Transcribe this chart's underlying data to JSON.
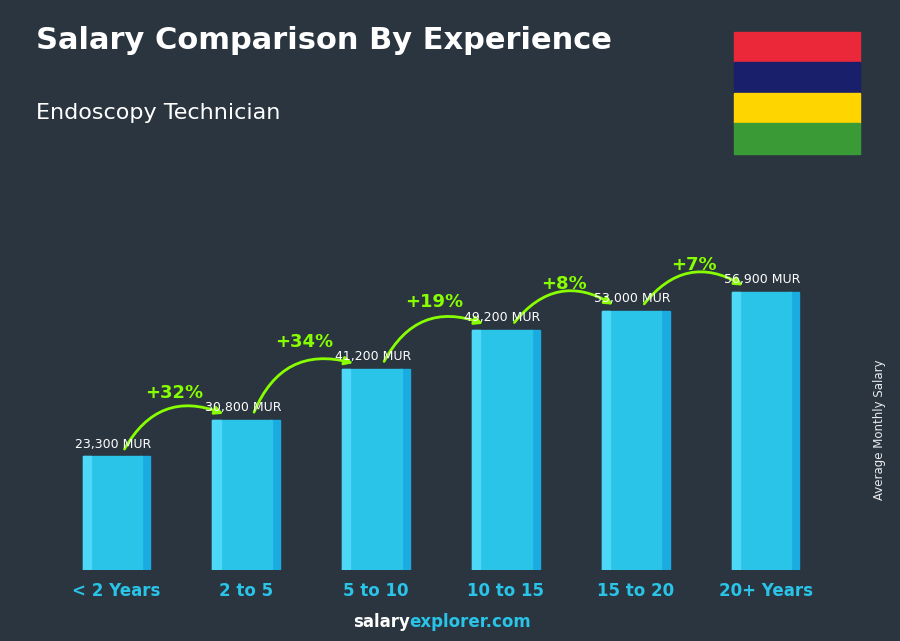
{
  "title": "Salary Comparison By Experience",
  "subtitle": "Endoscopy Technician",
  "categories": [
    "< 2 Years",
    "2 to 5",
    "5 to 10",
    "10 to 15",
    "15 to 20",
    "20+ Years"
  ],
  "values": [
    23300,
    30800,
    41200,
    49200,
    53000,
    56900
  ],
  "labels": [
    "23,300 MUR",
    "30,800 MUR",
    "41,200 MUR",
    "49,200 MUR",
    "53,000 MUR",
    "56,900 MUR"
  ],
  "pct_labels": [
    "+32%",
    "+34%",
    "+19%",
    "+8%",
    "+7%"
  ],
  "bar_color_main": "#29C4E8",
  "bar_color_light": "#4DD8F8",
  "bar_color_dark": "#1AABE0",
  "pct_color": "#88FF00",
  "value_color": "#FFFFFF",
  "title_color": "#FFFFFF",
  "subtitle_color": "#FFFFFF",
  "xtick_color": "#29C4E8",
  "bg_color": "#2a3540",
  "overlay_color": "#1a252f",
  "footer_salary_color": "#FFFFFF",
  "footer_explorer_color": "#29C4E8",
  "side_label": "Average Monthly Salary",
  "flag_colors": [
    "#EA2839",
    "#1A1F6B",
    "#FFD500",
    "#3A9A35"
  ],
  "ylim": [
    0,
    72000
  ],
  "bar_width": 0.52
}
